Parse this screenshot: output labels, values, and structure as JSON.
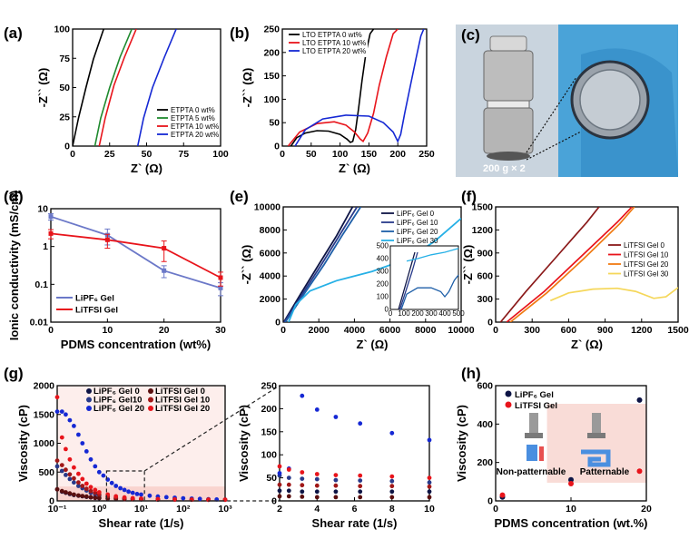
{
  "panel_labels": [
    "(a)",
    "(b)",
    "(c)",
    "(d)",
    "(e)",
    "(f)",
    "(g)",
    "(h)"
  ],
  "photo": {
    "caption": "200 g × 2"
  },
  "chart_data": [
    {
      "id": "a",
      "type": "line",
      "xlabel": "Z` (Ω)",
      "ylabel": "-Z`` (Ω)",
      "xlim": [
        0,
        100
      ],
      "ylim": [
        0,
        100
      ],
      "xticks": [
        "0",
        "25",
        "50",
        "75",
        "100"
      ],
      "yticks": [
        "0",
        "25",
        "50",
        "75",
        "100"
      ],
      "legend_position": "bottom-right",
      "series": [
        {
          "name": "ETPTA 0 wt%",
          "color": "#000000",
          "x": [
            0,
            4,
            9,
            14,
            21
          ],
          "y": [
            0,
            24,
            50,
            74,
            100
          ]
        },
        {
          "name": "ETPTA 5 wt%",
          "color": "#1f8a2e",
          "x": [
            15,
            19,
            25,
            32,
            40
          ],
          "y": [
            0,
            24,
            50,
            76,
            100
          ]
        },
        {
          "name": "ETPTA 10 wt%",
          "color": "#e8141b",
          "x": [
            18,
            22,
            28,
            35,
            43
          ],
          "y": [
            0,
            24,
            52,
            76,
            100
          ]
        },
        {
          "name": "ETPTA 20 wt%",
          "color": "#1528d4",
          "x": [
            44,
            48,
            54,
            62,
            70
          ],
          "y": [
            0,
            24,
            50,
            76,
            100
          ]
        }
      ]
    },
    {
      "id": "b",
      "type": "line",
      "xlabel": "Z` (Ω)",
      "ylabel": "-Z`` (Ω)",
      "xlim": [
        0,
        250
      ],
      "ylim": [
        0,
        250
      ],
      "xticks": [
        "0",
        "50",
        "100",
        "150",
        "200",
        "250"
      ],
      "yticks": [
        "0",
        "50",
        "100",
        "150",
        "200",
        "250"
      ],
      "legend_position": "top-left",
      "series": [
        {
          "name": "LTO ETPTA 0 wt%",
          "color": "#000000",
          "x": [
            15,
            25,
            40,
            60,
            80,
            100,
            112,
            118,
            122,
            127,
            132,
            138,
            145,
            152,
            158
          ],
          "y": [
            0,
            18,
            28,
            33,
            32,
            25,
            15,
            8,
            10,
            35,
            80,
            140,
            200,
            240,
            250
          ]
        },
        {
          "name": "LTO ETPTA 10 wt%",
          "color": "#e8141b",
          "x": [
            10,
            30,
            60,
            90,
            110,
            125,
            135,
            140,
            148,
            158,
            168,
            180,
            192,
            200
          ],
          "y": [
            0,
            30,
            48,
            52,
            45,
            30,
            15,
            10,
            28,
            70,
            130,
            190,
            240,
            250
          ]
        },
        {
          "name": "LTO ETPTA 20 wt%",
          "color": "#1528d4",
          "x": [
            22,
            40,
            70,
            110,
            150,
            175,
            192,
            200,
            205,
            212,
            222,
            232,
            240,
            245
          ],
          "y": [
            0,
            35,
            58,
            66,
            64,
            50,
            30,
            10,
            25,
            70,
            130,
            190,
            235,
            250
          ]
        }
      ]
    },
    {
      "id": "d",
      "type": "line",
      "yscale": "log",
      "xlabel": "PDMS concentration (wt%)",
      "ylabel": "Ionic conductivity (mS/cm)",
      "xlim": [
        0,
        30
      ],
      "ylim": [
        0.01,
        10
      ],
      "xticks": [
        "0",
        "10",
        "20",
        "30"
      ],
      "yticks": [
        "0.01",
        "0.1",
        "1",
        "10"
      ],
      "legend_position": "bottom-left",
      "series": [
        {
          "name": "LiPF₆ Gel",
          "color": "#6b78c8",
          "x": [
            0,
            10,
            20,
            30
          ],
          "y": [
            6.2,
            2.0,
            0.23,
            0.08
          ],
          "err": [
            1.2,
            0.9,
            0.08,
            0.03
          ]
        },
        {
          "name": "LiTFSI Gel",
          "color": "#e8141b",
          "x": [
            0,
            10,
            20,
            30
          ],
          "y": [
            2.2,
            1.5,
            0.9,
            0.15
          ],
          "err": [
            0.6,
            0.6,
            0.5,
            0.06
          ]
        }
      ]
    },
    {
      "id": "e",
      "type": "line",
      "xlabel": "Z` (Ω)",
      "ylabel": "-Z`` (Ω)",
      "xlim": [
        0,
        10000
      ],
      "ylim": [
        0,
        10000
      ],
      "xticks": [
        "0",
        "2000",
        "4000",
        "6000",
        "8000",
        "10000"
      ],
      "yticks": [
        "0",
        "2000",
        "4000",
        "6000",
        "8000",
        "10000"
      ],
      "legend_position": "top-right",
      "series": [
        {
          "name": "LiPF₆ Gel 0",
          "color": "#0d1445",
          "x": [
            30,
            1000,
            2000,
            3000,
            3900
          ],
          "y": [
            0,
            2500,
            5000,
            7500,
            10000
          ]
        },
        {
          "name": "LiPF₆ Gel 10",
          "color": "#283a8a",
          "x": [
            60,
            1100,
            2150,
            3150,
            4150
          ],
          "y": [
            0,
            2500,
            5000,
            7500,
            10000
          ]
        },
        {
          "name": "LiPF₆ Gel 20",
          "color": "#1e5fa8",
          "x": [
            120,
            1200,
            2300,
            3300,
            4350
          ],
          "y": [
            0,
            2500,
            5000,
            7500,
            10000
          ]
        },
        {
          "name": "LiPF₆ Gel 30",
          "color": "#26b0e6",
          "x": [
            300,
            700,
            1500,
            3000,
            5000,
            7000,
            8500,
            10000
          ],
          "y": [
            0,
            1500,
            2700,
            3600,
            4400,
            5500,
            7000,
            9000
          ]
        }
      ],
      "inset": {
        "xlim": [
          0,
          500
        ],
        "ylim": [
          0,
          500
        ],
        "xticks": [
          "0",
          "100",
          "200",
          "300",
          "400",
          "500"
        ],
        "yticks": [
          "0",
          "100",
          "200",
          "300",
          "400",
          "500"
        ]
      }
    },
    {
      "id": "f",
      "type": "line",
      "xlabel": "Z` (Ω)",
      "ylabel": "-Z`` (Ω)",
      "xlim": [
        0,
        1500
      ],
      "ylim": [
        0,
        1500
      ],
      "xticks": [
        "0",
        "300",
        "600",
        "900",
        "1200",
        "1500"
      ],
      "yticks": [
        "0",
        "300",
        "600",
        "900",
        "1200",
        "1500"
      ],
      "legend_position": "center-right",
      "series": [
        {
          "name": "LiTFSI Gel 0",
          "color": "#8b1a1a",
          "x": [
            40,
            250,
            500,
            750,
            850
          ],
          "y": [
            0,
            400,
            850,
            1300,
            1500
          ]
        },
        {
          "name": "LiTFSI Gel 10",
          "color": "#e8141b",
          "x": [
            90,
            400,
            700,
            1000,
            1120
          ],
          "y": [
            0,
            400,
            850,
            1300,
            1500
          ]
        },
        {
          "name": "LiTFSI Gel 20",
          "color": "#f07a12",
          "x": [
            120,
            420,
            720,
            1020,
            1140
          ],
          "y": [
            0,
            380,
            820,
            1280,
            1500
          ]
        },
        {
          "name": "LiTFSI Gel 30",
          "color": "#f5d75a",
          "x": [
            450,
            600,
            800,
            1000,
            1150,
            1300,
            1400,
            1500
          ],
          "y": [
            280,
            380,
            430,
            440,
            400,
            310,
            330,
            450
          ]
        }
      ]
    },
    {
      "id": "g1",
      "type": "scatter",
      "xscale": "log",
      "xlabel": "Shear rate (1/s)",
      "ylabel": "Viscosity (cP)",
      "xlim": [
        0.1,
        1000
      ],
      "ylim": [
        0,
        2000
      ],
      "xticks": [
        "10⁻¹",
        "10⁰",
        "10¹",
        "10²",
        "10³"
      ],
      "yticks": [
        "0",
        "500",
        "1000",
        "1500",
        "2000"
      ],
      "legend_position": "top",
      "series": [
        {
          "name": "LiPF₆ Gel 0",
          "color": "#0d1445",
          "x": [
            0.1,
            0.13,
            0.16,
            0.2,
            0.25,
            0.32,
            0.4,
            0.5,
            0.63,
            0.8,
            1,
            1.6,
            2.5,
            4,
            6.3,
            10,
            25,
            63,
            160,
            400,
            1000
          ],
          "y": [
            200,
            160,
            140,
            120,
            100,
            90,
            80,
            70,
            60,
            50,
            45,
            40,
            35,
            30,
            28,
            26,
            24,
            22,
            20,
            20,
            20
          ]
        },
        {
          "name": "LiPF₆ Gel10",
          "color": "#283a8a",
          "x": [
            0.1,
            0.13,
            0.16,
            0.2,
            0.25,
            0.32,
            0.4,
            0.5,
            0.63,
            0.8,
            1,
            1.6,
            2.5,
            4,
            6.3,
            10,
            25,
            63,
            160,
            400,
            1000
          ],
          "y": [
            600,
            520,
            450,
            380,
            320,
            260,
            220,
            180,
            140,
            110,
            90,
            70,
            55,
            45,
            38,
            32,
            28,
            24,
            22,
            20,
            20
          ]
        },
        {
          "name": "LiPF₆ Gel 20",
          "color": "#1528d4",
          "x": [
            0.1,
            0.13,
            0.16,
            0.2,
            0.25,
            0.32,
            0.4,
            0.5,
            0.63,
            0.8,
            1,
            1.26,
            1.6,
            2,
            2.5,
            3.2,
            4,
            5,
            6.3,
            8,
            10,
            16,
            25,
            40,
            63,
            100,
            160,
            250,
            400,
            630,
            1000
          ],
          "y": [
            1550,
            1550,
            1500,
            1400,
            1300,
            1150,
            1000,
            860,
            720,
            600,
            500,
            440,
            370,
            310,
            260,
            220,
            190,
            160,
            140,
            120,
            110,
            90,
            75,
            65,
            55,
            45,
            40,
            35,
            30,
            25,
            20
          ]
        },
        {
          "name": "LiTFSI Gel 0",
          "color": "#5a0f0f",
          "x": [
            0.1,
            0.13,
            0.16,
            0.2,
            0.25,
            0.32,
            0.4,
            0.5,
            0.63,
            0.8,
            1,
            1.6,
            2.5,
            4,
            6.3,
            10,
            25,
            63,
            160,
            400,
            1000
          ],
          "y": [
            200,
            170,
            150,
            130,
            110,
            95,
            85,
            75,
            65,
            55,
            50,
            42,
            36,
            32,
            28,
            26,
            24,
            22,
            20,
            20,
            20
          ]
        },
        {
          "name": "LiTFSI Gel 10",
          "color": "#a01818",
          "x": [
            0.1,
            0.13,
            0.16,
            0.2,
            0.25,
            0.32,
            0.4,
            0.5,
            0.63,
            0.8,
            1,
            1.6,
            2.5,
            4,
            6.3,
            10,
            25,
            63,
            160,
            400,
            1000
          ],
          "y": [
            700,
            620,
            540,
            460,
            390,
            320,
            260,
            210,
            170,
            140,
            110,
            80,
            60,
            48,
            40,
            34,
            28,
            24,
            22,
            20,
            20
          ]
        },
        {
          "name": "LiTFSI Gel 20",
          "color": "#e8141b",
          "x": [
            0.1,
            0.13,
            0.16,
            0.2,
            0.25,
            0.32,
            0.4,
            0.5,
            0.63,
            0.8,
            1,
            1.6,
            2.5,
            4,
            6.3,
            10,
            25,
            63,
            160,
            400,
            1000
          ],
          "y": [
            1800,
            1100,
            900,
            720,
            580,
            470,
            380,
            300,
            240,
            190,
            150,
            110,
            80,
            60,
            48,
            40,
            32,
            26,
            22,
            20,
            20
          ]
        }
      ]
    },
    {
      "id": "g2",
      "type": "scatter",
      "xlabel": "Shear rate (1/s)",
      "ylabel": "Viscosity (cP)",
      "xlim": [
        2,
        10
      ],
      "ylim": [
        0,
        250
      ],
      "xticks": [
        "2",
        "4",
        "6",
        "8",
        "10"
      ],
      "yticks": [
        "0",
        "50",
        "100",
        "150",
        "200",
        "250"
      ],
      "series": [
        {
          "name": "LiPF₆ Gel 0",
          "color": "#0d1445",
          "x": [
            2,
            2.5,
            3.2,
            4,
            5,
            6.3,
            8,
            10
          ],
          "y": [
            22,
            22,
            20,
            20,
            20,
            20,
            20,
            20
          ]
        },
        {
          "name": "LiPF₆ Gel10",
          "color": "#283a8a",
          "x": [
            2,
            2.5,
            3.2,
            4,
            5,
            6.3,
            8,
            10
          ],
          "y": [
            55,
            50,
            48,
            47,
            45,
            44,
            43,
            40
          ]
        },
        {
          "name": "LiPF₆ Gel 20",
          "color": "#1528d4",
          "x": [
            2,
            2.5,
            3.2,
            4,
            5,
            6.3,
            8,
            10
          ],
          "y": [
            60,
            70,
            228,
            198,
            182,
            168,
            147,
            132
          ]
        },
        {
          "name": "LiTFSI Gel 0",
          "color": "#5a0f0f",
          "x": [
            2,
            2.5,
            3.2,
            4,
            5,
            6.3,
            8,
            10
          ],
          "y": [
            10,
            10,
            9,
            8,
            8,
            8,
            8,
            8
          ]
        },
        {
          "name": "LiTFSI Gel 10",
          "color": "#a01818",
          "x": [
            2,
            2.5,
            3.2,
            4,
            5,
            6.3,
            8,
            10
          ],
          "y": [
            35,
            35,
            34,
            33,
            33,
            32,
            32,
            31
          ]
        },
        {
          "name": "LiTFSI Gel 20",
          "color": "#e8141b",
          "x": [
            2,
            2.5,
            3.2,
            4,
            5,
            6.3,
            8,
            10
          ],
          "y": [
            75,
            68,
            62,
            58,
            56,
            55,
            53,
            50
          ]
        }
      ]
    },
    {
      "id": "h",
      "type": "scatter",
      "xlabel": "PDMS concentration (wt.%)",
      "ylabel": "Viscosity (cP)",
      "xlim": [
        -1,
        21
      ],
      "ylim": [
        0,
        600
      ],
      "xticks": [
        "0",
        "10",
        "20"
      ],
      "yticks": [
        "0",
        "200",
        "400",
        "600"
      ],
      "legend_position": "top-left",
      "annotations": [
        "Non-patternable",
        "Patternable"
      ],
      "series": [
        {
          "name": "LiPF₆ Gel",
          "color": "#0d1445",
          "x": [
            0,
            10,
            20
          ],
          "y": [
            20,
            110,
            525
          ]
        },
        {
          "name": "LiTFSI Gel",
          "color": "#e8141b",
          "x": [
            0,
            10,
            20
          ],
          "y": [
            30,
            90,
            155
          ]
        }
      ]
    }
  ]
}
